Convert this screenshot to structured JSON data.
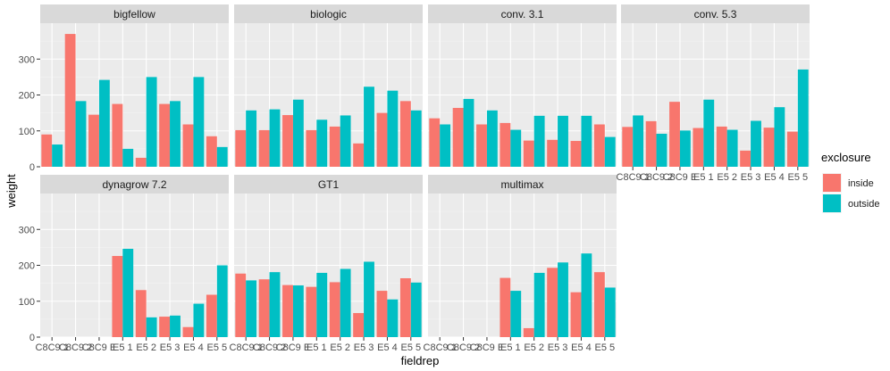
{
  "chart_data": {
    "type": "bar",
    "xlabel": "fieldrep",
    "ylabel": "weight",
    "ylim": [
      0,
      400
    ],
    "yticks": [
      0,
      100,
      200,
      300
    ],
    "categories": [
      "C8C9 1",
      "C8C9 2",
      "C8C9 E",
      "E5 1",
      "E5 2",
      "E5 3",
      "E5 4",
      "E5 5"
    ],
    "legend": {
      "title": "exclosure",
      "position": "right",
      "entries": [
        {
          "name": "inside",
          "color": "#F8766D"
        },
        {
          "name": "outside",
          "color": "#00BFC4"
        }
      ]
    },
    "grid": true,
    "panels": [
      {
        "title": "bigfellow",
        "inside": [
          90,
          370,
          145,
          175,
          25,
          175,
          118,
          85
        ],
        "outside": [
          62,
          183,
          242,
          50,
          250,
          183,
          250,
          55
        ]
      },
      {
        "title": "biologic",
        "inside": [
          102,
          102,
          144,
          102,
          112,
          65,
          150,
          183
        ],
        "outside": [
          157,
          160,
          187,
          131,
          143,
          223,
          212,
          157
        ]
      },
      {
        "title": "conv. 3.1",
        "inside": [
          135,
          164,
          118,
          122,
          73,
          75,
          72,
          118
        ],
        "outside": [
          118,
          189,
          157,
          103,
          142,
          142,
          142,
          83
        ]
      },
      {
        "title": "conv. 5.3",
        "inside": [
          111,
          127,
          181,
          108,
          112,
          45,
          109,
          98
        ],
        "outside": [
          143,
          92,
          101,
          187,
          103,
          128,
          166,
          271
        ]
      },
      {
        "title": "dynagrow 7.2",
        "inside": [
          null,
          null,
          null,
          226,
          131,
          57,
          28,
          118
        ],
        "outside": [
          null,
          null,
          null,
          246,
          55,
          60,
          93,
          200
        ]
      },
      {
        "title": "GT1",
        "inside": [
          177,
          161,
          145,
          140,
          153,
          67,
          129,
          164
        ],
        "outside": [
          158,
          181,
          144,
          179,
          190,
          210,
          105,
          152
        ]
      },
      {
        "title": "multimax",
        "inside": [
          null,
          null,
          null,
          165,
          25,
          193,
          125,
          181
        ],
        "outside": [
          null,
          null,
          null,
          129,
          179,
          208,
          233,
          138
        ]
      }
    ]
  }
}
